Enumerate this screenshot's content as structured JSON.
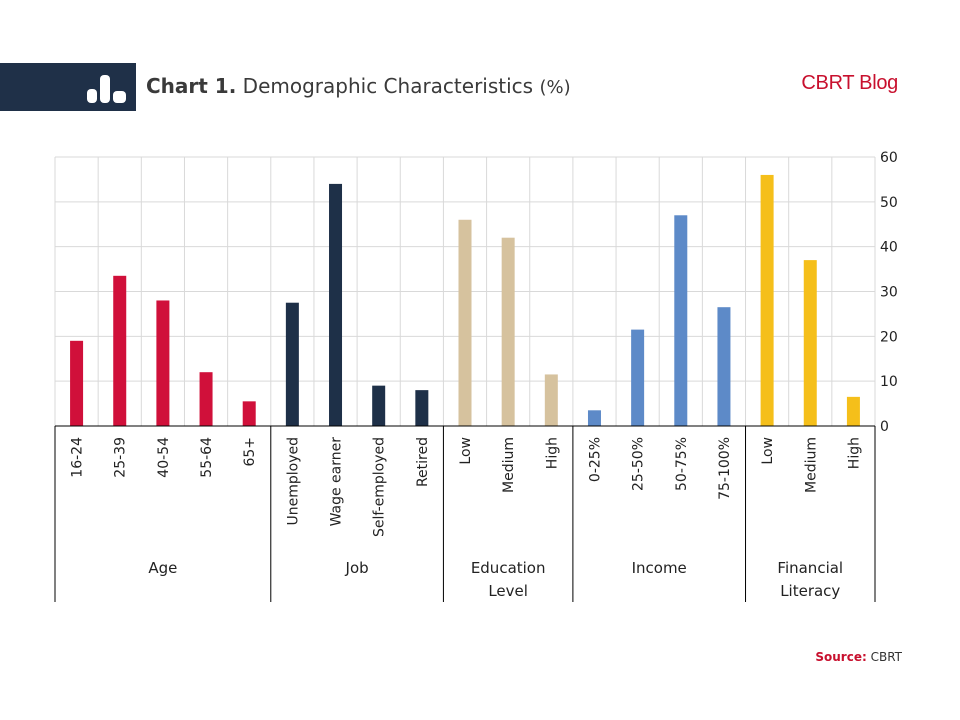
{
  "header": {
    "title_bold": "Chart 1.",
    "title_rest": "Demographic Characteristics",
    "title_unit": "(%)",
    "brand": "CBRT Blog",
    "brand_color": "#c8102e",
    "band_color": "#1f3048",
    "icon": "bar-chart-icon"
  },
  "source": {
    "label": "Source:",
    "value": "CBRT"
  },
  "chart_data": {
    "type": "bar",
    "ylim": [
      0,
      60
    ],
    "yticks": [
      0,
      10,
      20,
      30,
      40,
      50,
      60
    ],
    "y_axis_side": "right",
    "grid": true,
    "groups": [
      {
        "name": "Age",
        "color": "#d0103a",
        "categories": [
          "16-24",
          "25-39",
          "40-54",
          "55-64",
          "65+"
        ],
        "values": [
          19,
          33.5,
          28,
          12,
          5.5
        ]
      },
      {
        "name": "Job",
        "color": "#1e3048",
        "categories": [
          "Unemployed",
          "Wage earner",
          "Self-employed",
          "Retired"
        ],
        "values": [
          27.5,
          54,
          9,
          8
        ]
      },
      {
        "name": "Education Level",
        "color": "#d6c29e",
        "categories": [
          "Low",
          "Medium",
          "High"
        ],
        "values": [
          46,
          42,
          11.5
        ]
      },
      {
        "name": "Income",
        "color": "#5d8ac8",
        "categories": [
          "0-25%",
          "25-50%",
          "50-75%",
          "75-100%"
        ],
        "values": [
          3.5,
          21.5,
          47,
          26.5
        ]
      },
      {
        "name": "Financial Literacy",
        "color": "#f5bf1a",
        "categories": [
          "Low",
          "Medium",
          "High"
        ],
        "values": [
          56,
          37,
          6.5
        ]
      }
    ]
  }
}
